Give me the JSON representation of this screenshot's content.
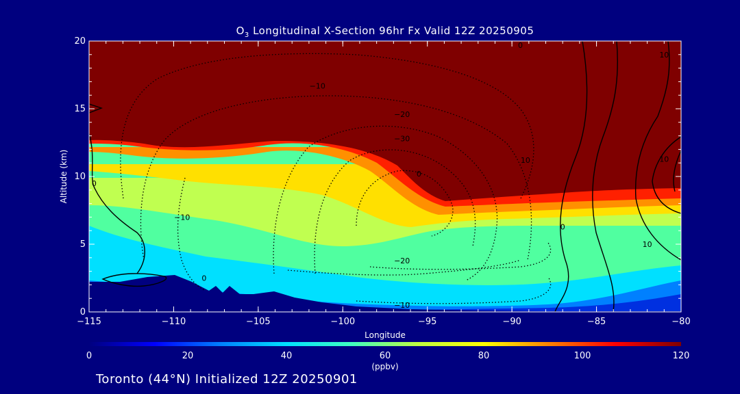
{
  "chart_data": {
    "type": "heatmap",
    "title": "O3 Longitudinal X-Section 96hr  Fx Valid 12Z 20250905",
    "title_parts": {
      "prefix": "O",
      "sub": "3",
      "rest": " Longitudinal X-Section 96hr  Fx Valid 12Z 20250905"
    },
    "xlabel": "Longitude",
    "ylabel": "Altitude (km)",
    "xlim": [
      -115,
      -80
    ],
    "ylim": [
      0,
      20
    ],
    "x_ticks": [
      "−115",
      "−110",
      "−105",
      "−100",
      "−95",
      "−90",
      "−85",
      "−80"
    ],
    "x_tick_values": [
      -115,
      -110,
      -105,
      -100,
      -95,
      -90,
      -85,
      -80
    ],
    "y_ticks": [
      "0",
      "5",
      "10",
      "15",
      "20"
    ],
    "y_tick_values": [
      0,
      5,
      10,
      15,
      20
    ],
    "tropopause_km": [
      {
        "lon": -115,
        "alt": 12.5
      },
      {
        "lon": -113,
        "alt": 12.5
      },
      {
        "lon": -111,
        "alt": 11.6
      },
      {
        "lon": -108,
        "alt": 11.4
      },
      {
        "lon": -104,
        "alt": 12.6
      },
      {
        "lon": -101,
        "alt": 12.0
      },
      {
        "lon": -98,
        "alt": 10.8
      },
      {
        "lon": -96,
        "alt": 9.3
      },
      {
        "lon": -94,
        "alt": 8.2
      },
      {
        "lon": -90,
        "alt": 8.3
      },
      {
        "lon": -85,
        "alt": 8.9
      },
      {
        "lon": -80,
        "alt": 9.1
      }
    ],
    "contour_labels": [
      {
        "text": "−10",
        "lon": -101.5,
        "alt": 16.7
      },
      {
        "text": "−20",
        "lon": -96.5,
        "alt": 14.6
      },
      {
        "text": "−30",
        "lon": -96.5,
        "alt": 12.8
      },
      {
        "text": "0",
        "lon": -95.5,
        "alt": 10.2
      },
      {
        "text": "10",
        "lon": -89.2,
        "alt": 11.2
      },
      {
        "text": "−10",
        "lon": -109.5,
        "alt": 7.0
      },
      {
        "text": "0",
        "lon": -114.7,
        "alt": 9.5
      },
      {
        "text": "0",
        "lon": -108.2,
        "alt": 2.5
      },
      {
        "text": "−20",
        "lon": -96.5,
        "alt": 3.8
      },
      {
        "text": "−10",
        "lon": -96.5,
        "alt": 0.5
      },
      {
        "text": "0",
        "lon": -87.0,
        "alt": 6.3
      },
      {
        "text": "10",
        "lon": -82.0,
        "alt": 5.0
      },
      {
        "text": "10",
        "lon": -81.0,
        "alt": 19.0
      },
      {
        "text": "10",
        "lon": -81.0,
        "alt": 11.3
      },
      {
        "text": "0",
        "lon": -89.5,
        "alt": 19.7
      }
    ],
    "colorbar": {
      "ticks": [
        "0",
        "20",
        "40",
        "60",
        "80",
        "100",
        "120"
      ],
      "tick_values": [
        0,
        20,
        40,
        60,
        80,
        100,
        120
      ],
      "unit": "(ppbv)",
      "colors": [
        "#00007f",
        "#0000ff",
        "#0080ff",
        "#00e0ff",
        "#40ffc0",
        "#c0ff40",
        "#ffff00",
        "#ff8000",
        "#ff0000",
        "#7f0000"
      ]
    }
  },
  "station_label": "Toronto (44°N) Initialized 12Z 20250901"
}
